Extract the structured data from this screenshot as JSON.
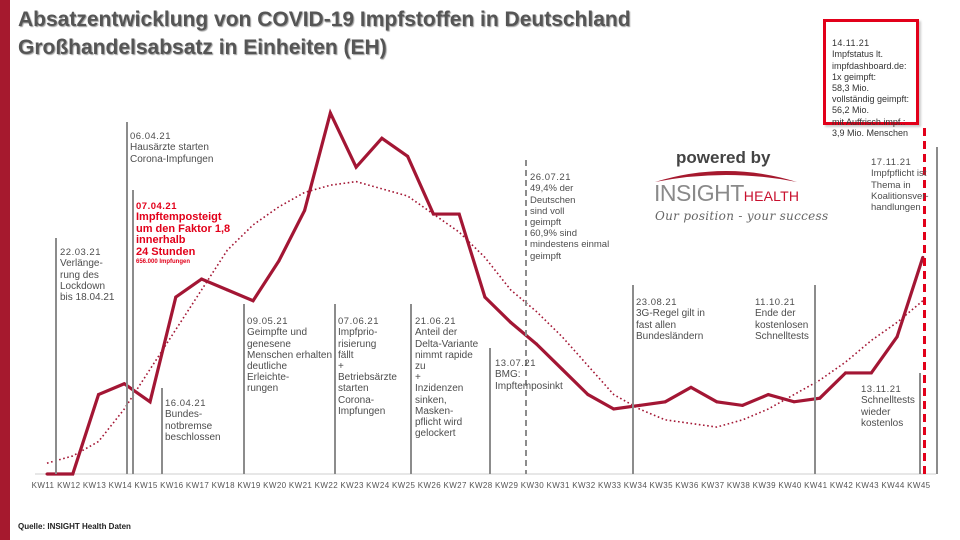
{
  "header": {
    "title_line1": "Absatzentwicklung von COVID-19 Impfstoffen in Deutschland",
    "title_line2": "Großhandelsabsatz in Einheiten (EH)"
  },
  "logo": {
    "powered_by": "powered by",
    "brand_part1": "INSIGHT",
    "brand_part2": "HEALTH",
    "tagline": "Our position - your success"
  },
  "source": "Quelle: INSIGHT Health Daten",
  "info_box": {
    "date": "14.11.21",
    "text": "Impfstatus lt.\nimpfdashboard.de:\n1x geimpft:\n58,3  Mio.\nvollständig geimpft:\n56,2  Mio.\nmit Auffrisch.impf.:\n3,9 Mio. Menschen"
  },
  "annotations": [
    {
      "date": "22.03.21",
      "text": "Verlänge-\nrung des\nLockdown\nbis 18.04.21"
    },
    {
      "date": "06.04.21",
      "text": "Hausärzte starten\nCorona-Impfungen"
    },
    {
      "date": "07.04.21",
      "text": "Impftemposteigt\num den Faktor 1,8\ninnerhalb\n24 Stunden",
      "note": "656.000 Impfungen"
    },
    {
      "date": "16.04.21",
      "text": "Bundes-\nnotbremse\nbeschlossen"
    },
    {
      "date": "09.05.21",
      "text": "Geimpfte und\ngenesene\nMenschen erhalten\ndeutliche\nErleichte-\nrungen"
    },
    {
      "date": "07.06.21",
      "text": "Impfprio-\nrisierung\nfällt\n+\nBetriebsärzte\nstarten\nCorona-\nImpfungen"
    },
    {
      "date": "21.06.21",
      "text": "Anteil der\nDelta-Variante\nnimmt rapide\nzu\n+\nInzidenzen\nsinken,\nMasken-\npflicht wird\ngelockert"
    },
    {
      "date": "13.07.21",
      "text": "BMG:\nImpftemposinkt"
    },
    {
      "date": "26.07.21",
      "text": "49,4%  der\nDeutschen\nsind voll\ngeimpft\n60,9%  sind\nmindestens einmal\ngeimpft"
    },
    {
      "date": "23.08.21",
      "text": "3G-Regel gilt in\nfast allen\nBundesländern"
    },
    {
      "date": "11.10.21",
      "text": "Ende der\nkostenlosen\nSchnelltests"
    },
    {
      "date": "13.11.21",
      "text": "Schnelltests\nwieder\nkostenlos"
    },
    {
      "date": "17.11.21",
      "text": "Impfpflicht ist\nThema in\nKoalitionsver-\nhandlungen"
    }
  ],
  "colors": {
    "accent": "#a6192e",
    "series_line": "#a31634",
    "highlight": "#e2001a",
    "annotation_line": "#8c8c8c",
    "text": "#4d4d4d"
  },
  "chart_data": {
    "type": "line",
    "title": "Absatzentwicklung von COVID-19 Impfstoffen in Deutschland – Großhandelsabsatz in Einheiten (EH)",
    "xlabel": "",
    "ylabel": "",
    "y_scale_note": "no y-axis labels shown; values relative, peak (KW22) = 100",
    "ylim": [
      0,
      100
    ],
    "grid": false,
    "legend": "none",
    "categories": [
      "KW11",
      "KW12",
      "KW13",
      "KW14",
      "KW15",
      "KW16",
      "KW17",
      "KW18",
      "KW19",
      "KW20",
      "KW21",
      "KW22",
      "KW23",
      "KW24",
      "KW25",
      "KW26",
      "KW27",
      "KW28",
      "KW29",
      "KW30",
      "KW31",
      "KW32",
      "KW33",
      "KW34",
      "KW35",
      "KW36",
      "KW37",
      "KW38",
      "KW39",
      "KW40",
      "KW41",
      "KW42",
      "KW43",
      "KW44",
      "KW45"
    ],
    "series": [
      {
        "name": "Großhandelsabsatz (EH)",
        "style": "solid",
        "values": [
          0,
          0,
          22,
          25,
          20,
          49,
          54,
          51,
          48,
          59,
          73,
          100,
          85,
          93,
          88,
          72,
          72,
          49,
          42,
          36,
          29,
          22,
          18,
          19,
          20,
          24,
          20,
          19,
          22,
          20,
          21,
          28,
          28,
          38,
          60
        ]
      },
      {
        "name": "Trend",
        "style": "dotted",
        "values": [
          3,
          5,
          9,
          18,
          29,
          40,
          51,
          62,
          69,
          74,
          78,
          80,
          81,
          79,
          77,
          72,
          67,
          60,
          51,
          45,
          38,
          30,
          22,
          18,
          15,
          14,
          13,
          15,
          18,
          22,
          26,
          31,
          37,
          42,
          48
        ]
      }
    ]
  }
}
